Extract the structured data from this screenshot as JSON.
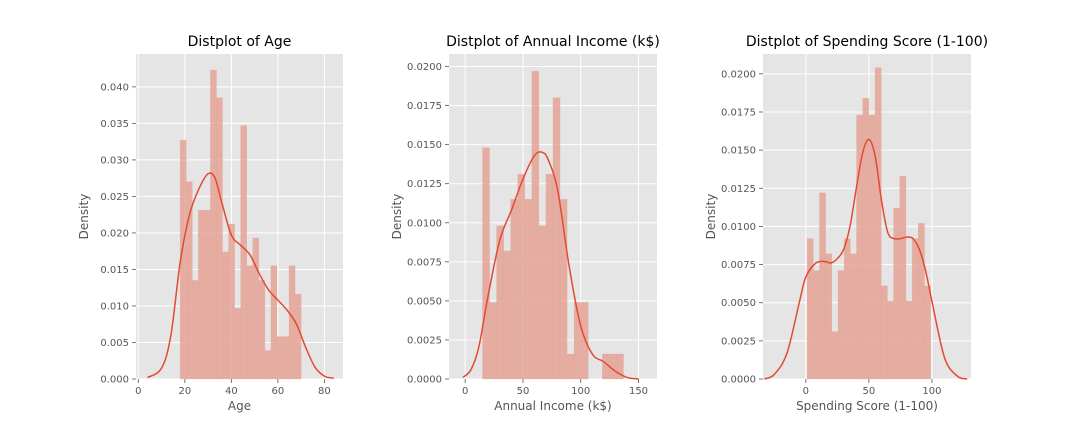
{
  "chart_data": [
    {
      "type": "histogram",
      "title": "Distplot of Age",
      "xlabel": "Age",
      "ylabel": "Density",
      "xlim": [
        -1,
        88
      ],
      "ylim": [
        0,
        0.0445
      ],
      "xticks": [
        0,
        20,
        40,
        60,
        80
      ],
      "yticks": [
        0,
        0.005,
        0.01,
        0.015,
        0.02,
        0.025,
        0.03,
        0.035,
        0.04
      ],
      "ytick_labels": [
        "0.000",
        "0.005",
        "0.010",
        "0.015",
        "0.020",
        "0.025",
        "0.030",
        "0.035",
        "0.040"
      ],
      "grid": true,
      "bin_edges": [
        18,
        20.6,
        23.2,
        25.8,
        28.4,
        31,
        33.6,
        36.2,
        38.8,
        41.4,
        44,
        46.6,
        49.2,
        51.8,
        54.4,
        57,
        59.6,
        62.2,
        64.8,
        67.4,
        70
      ],
      "bin_densities": [
        0.0327,
        0.027,
        0.0135,
        0.0231,
        0.0231,
        0.0423,
        0.0385,
        0.0174,
        0.0212,
        0.0097,
        0.0347,
        0.0155,
        0.0193,
        0.0135,
        0.0039,
        0.0155,
        0.0058,
        0.0058,
        0.0155,
        0.0116
      ],
      "kde": {
        "x": [
          4,
          10,
          14,
          18,
          22,
          26,
          30,
          33,
          36,
          40,
          44,
          48,
          52,
          56,
          60,
          64,
          68,
          72,
          76,
          80,
          84
        ],
        "y": [
          0.0002,
          0.0015,
          0.006,
          0.016,
          0.0225,
          0.026,
          0.0281,
          0.0275,
          0.024,
          0.0197,
          0.0183,
          0.017,
          0.0144,
          0.0122,
          0.0108,
          0.0094,
          0.0075,
          0.0043,
          0.0016,
          0.0004,
          0.0001
        ]
      }
    },
    {
      "type": "histogram",
      "title": "Distplot of Annual Income (k$)",
      "xlabel": "Annual Income (k$)",
      "ylabel": "Density",
      "xlim": [
        -14,
        166
      ],
      "ylim": [
        0,
        0.0208
      ],
      "xticks": [
        0,
        50,
        100,
        150
      ],
      "yticks": [
        0,
        0.0025,
        0.005,
        0.0075,
        0.01,
        0.0125,
        0.015,
        0.0175,
        0.02
      ],
      "ytick_labels": [
        "0.0000",
        "0.0025",
        "0.0050",
        "0.0075",
        "0.0100",
        "0.0125",
        "0.0150",
        "0.0175",
        "0.0200"
      ],
      "grid": true,
      "bin_edges": [
        15,
        21.1,
        27.2,
        33.3,
        39.4,
        45.5,
        51.6,
        57.7,
        63.8,
        69.9,
        76,
        82.1,
        88.2,
        94.3,
        100.4,
        106.5,
        112.6,
        118.7,
        124.8,
        130.9,
        137
      ],
      "bin_densities": [
        0.0148,
        0.0049,
        0.0098,
        0.0082,
        0.0115,
        0.0131,
        0.0115,
        0.0197,
        0.0098,
        0.0131,
        0.018,
        0.0115,
        0.0016,
        0.0049,
        0.0049,
        0,
        0,
        0.0016,
        0.0016,
        0.0016
      ],
      "kde": {
        "x": [
          -2,
          5,
          12,
          20,
          30,
          40,
          50,
          60,
          67,
          72,
          80,
          90,
          100,
          110,
          120,
          130,
          140,
          150
        ],
        "y": [
          0.0001,
          0.0006,
          0.0021,
          0.0054,
          0.0089,
          0.0108,
          0.0128,
          0.0143,
          0.0145,
          0.014,
          0.0121,
          0.0072,
          0.0034,
          0.0016,
          0.0011,
          0.0005,
          0.0001,
          0
        ]
      }
    },
    {
      "type": "histogram",
      "title": "Distplot of Spending Score (1-100)",
      "xlabel": "Spending Score (1-100)",
      "ylabel": "Density",
      "xlim": [
        -34,
        131
      ],
      "ylim": [
        0,
        0.0213
      ],
      "xticks": [
        0,
        50,
        100
      ],
      "yticks": [
        0,
        0.0025,
        0.005,
        0.0075,
        0.01,
        0.0125,
        0.015,
        0.0175,
        0.02
      ],
      "ytick_labels": [
        "0.0000",
        "0.0025",
        "0.0050",
        "0.0075",
        "0.0100",
        "0.0125",
        "0.0150",
        "0.0175",
        "0.0200"
      ],
      "grid": true,
      "bin_edges": [
        1,
        5.9,
        10.8,
        15.7,
        20.6,
        25.5,
        30.4,
        35.3,
        40.2,
        45.1,
        50,
        54.9,
        59.8,
        64.7,
        69.6,
        74.5,
        79.4,
        84.3,
        89.2,
        94.1,
        99
      ],
      "bin_densities": [
        0.0092,
        0.0071,
        0.0122,
        0.0082,
        0.0031,
        0.0071,
        0.0092,
        0.0082,
        0.0173,
        0.0184,
        0.0173,
        0.0204,
        0.0061,
        0.0051,
        0.0112,
        0.0133,
        0.0051,
        0.0092,
        0.0102,
        0.0061
      ],
      "kde": {
        "x": [
          -33,
          -25,
          -15,
          -5,
          0,
          8,
          15,
          20,
          25,
          30,
          35,
          40,
          45,
          50,
          55,
          60,
          65,
          70,
          75,
          80,
          85,
          90,
          95,
          100,
          110,
          120,
          128
        ],
        "y": [
          0,
          0.0003,
          0.0017,
          0.0051,
          0.0067,
          0.0076,
          0.0077,
          0.0076,
          0.0079,
          0.0085,
          0.01,
          0.0125,
          0.0148,
          0.0157,
          0.0146,
          0.0117,
          0.0096,
          0.0092,
          0.0092,
          0.0093,
          0.0092,
          0.0085,
          0.0071,
          0.0051,
          0.0014,
          0.0002,
          0
        ]
      }
    }
  ],
  "colors": {
    "bar_fill": "#E5A396",
    "bar_fill_opacity": 0.85,
    "kde_line": "#E24A33",
    "plot_background": "#E5E5E5",
    "grid": "#ffffff",
    "tick_text": "#555555",
    "title_text": "#000000"
  }
}
